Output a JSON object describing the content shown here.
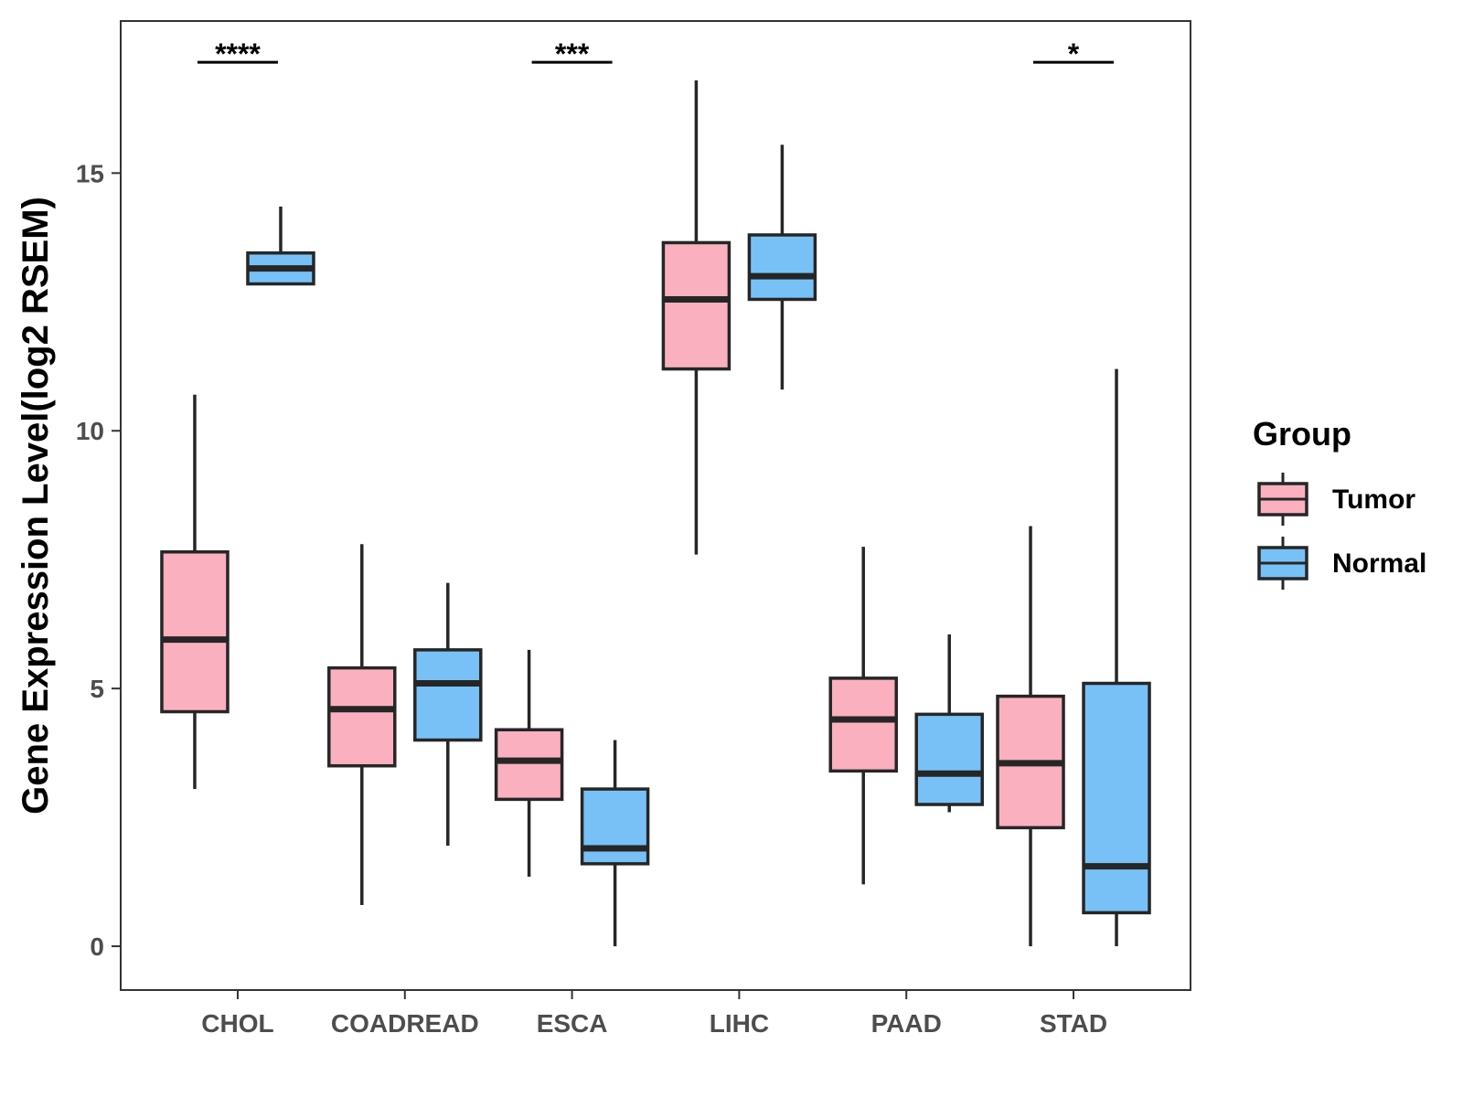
{
  "chart_data": {
    "type": "boxplot",
    "ylabel": "Gene Expression Level(log2 RSEM)",
    "xlabel": "",
    "ylim": [
      -0.85,
      17.95
    ],
    "yticks": [
      0,
      5,
      10,
      15
    ],
    "categories": [
      "CHOL",
      "COADREAD",
      "ESCA",
      "LIHC",
      "PAAD",
      "STAD"
    ],
    "legend": {
      "title": "Group",
      "position": "right",
      "entries": [
        {
          "name": "Tumor",
          "color": "#fbb0c0"
        },
        {
          "name": "Normal",
          "color": "#78c1f7"
        }
      ]
    },
    "series": [
      {
        "name": "Tumor",
        "color": "#fbb0c0",
        "boxes": [
          {
            "category": "CHOL",
            "whisker_low": 3.05,
            "q1": 4.55,
            "median": 5.95,
            "q3": 7.65,
            "whisker_high": 10.7
          },
          {
            "category": "COADREAD",
            "whisker_low": 0.8,
            "q1": 3.5,
            "median": 4.6,
            "q3": 5.4,
            "whisker_high": 7.8
          },
          {
            "category": "ESCA",
            "whisker_low": 1.35,
            "q1": 2.85,
            "median": 3.6,
            "q3": 4.2,
            "whisker_high": 5.75
          },
          {
            "category": "LIHC",
            "whisker_low": 7.6,
            "q1": 11.2,
            "median": 12.55,
            "q3": 13.65,
            "whisker_high": 16.8
          },
          {
            "category": "PAAD",
            "whisker_low": 1.2,
            "q1": 3.4,
            "median": 4.4,
            "q3": 5.2,
            "whisker_high": 7.75
          },
          {
            "category": "STAD",
            "whisker_low": 0.0,
            "q1": 2.3,
            "median": 3.55,
            "q3": 4.85,
            "whisker_high": 8.15
          }
        ]
      },
      {
        "name": "Normal",
        "color": "#78c1f7",
        "boxes": [
          {
            "category": "CHOL",
            "whisker_low": 12.85,
            "q1": 12.85,
            "median": 13.15,
            "q3": 13.45,
            "whisker_high": 14.35
          },
          {
            "category": "COADREAD",
            "whisker_low": 1.95,
            "q1": 4.0,
            "median": 5.1,
            "q3": 5.75,
            "whisker_high": 7.05
          },
          {
            "category": "ESCA",
            "whisker_low": 0.0,
            "q1": 1.6,
            "median": 1.9,
            "q3": 3.05,
            "whisker_high": 4.0
          },
          {
            "category": "LIHC",
            "whisker_low": 10.8,
            "q1": 12.55,
            "median": 13.0,
            "q3": 13.8,
            "whisker_high": 15.55
          },
          {
            "category": "PAAD",
            "whisker_low": 2.6,
            "q1": 2.75,
            "median": 3.35,
            "q3": 4.5,
            "whisker_high": 6.05
          },
          {
            "category": "STAD",
            "whisker_low": 0.0,
            "q1": 0.65,
            "median": 1.55,
            "q3": 5.1,
            "whisker_high": 11.2
          }
        ]
      }
    ],
    "significance": [
      {
        "category": "CHOL",
        "label": "****"
      },
      {
        "category": "ESCA",
        "label": "***"
      },
      {
        "category": "STAD",
        "label": "*"
      }
    ],
    "significance_level": 17.15
  }
}
